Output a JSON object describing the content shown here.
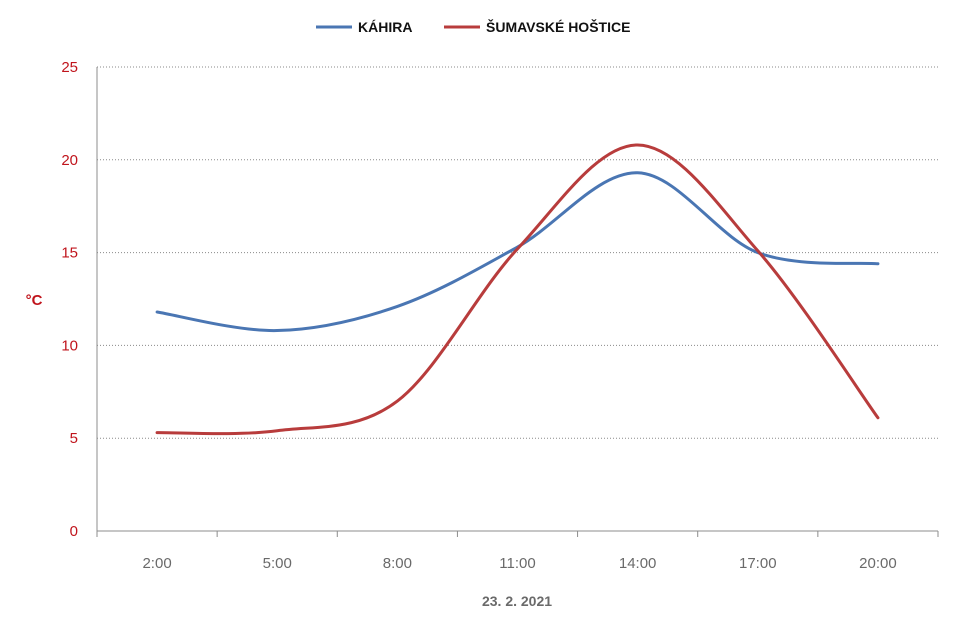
{
  "chart_data": {
    "type": "line",
    "xlabel": "23. 2. 2021",
    "ylabel": "°C",
    "categories": [
      "2:00",
      "5:00",
      "8:00",
      "11:00",
      "14:00",
      "17:00",
      "20:00"
    ],
    "ylim": [
      0,
      25
    ],
    "yticks": [
      0,
      5,
      10,
      15,
      20,
      25
    ],
    "grid": "horizontal-dotted",
    "legend_position": "top",
    "series": [
      {
        "name": "KÁHIRA",
        "color": "#4a76b3",
        "values": [
          11.8,
          10.8,
          12.1,
          15.3,
          19.3,
          15.0,
          14.4
        ]
      },
      {
        "name": "ŠUMAVSKÉ HOŠTICE",
        "color": "#b83c3c",
        "values": [
          5.3,
          5.4,
          7.0,
          15.2,
          20.8,
          15.1,
          6.1
        ]
      }
    ]
  }
}
